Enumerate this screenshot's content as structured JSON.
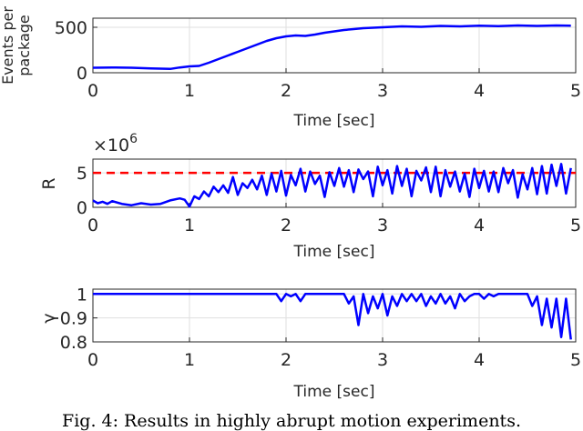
{
  "caption": "Fig. 4: Results in highly abrupt motion experiments.",
  "colors": {
    "series": "#0000ff",
    "threshold": "#ff0000",
    "axis": "#262626",
    "grid": "#dfdfdf"
  },
  "chart_data": [
    {
      "type": "line",
      "xlabel": "Time [sec]",
      "ylabel": "Events per package",
      "xlim": [
        0,
        5
      ],
      "ylim": [
        0,
        600
      ],
      "xticks": [
        "0",
        "1",
        "2",
        "3",
        "4",
        "5"
      ],
      "yticks": [
        "0",
        "500"
      ],
      "grid": true,
      "series": [
        {
          "x": [
            0,
            0.2,
            0.4,
            0.6,
            0.8,
            0.9,
            1.0,
            1.1,
            1.2,
            1.3,
            1.4,
            1.5,
            1.6,
            1.7,
            1.8,
            1.9,
            2.0,
            2.1,
            2.2,
            2.3,
            2.4,
            2.5,
            2.6,
            2.7,
            2.8,
            2.9,
            3.0,
            3.2,
            3.4,
            3.6,
            3.8,
            4.0,
            4.2,
            4.4,
            4.6,
            4.8,
            4.95
          ],
          "y": [
            55,
            58,
            55,
            48,
            42,
            58,
            70,
            75,
            110,
            150,
            190,
            230,
            270,
            310,
            350,
            380,
            400,
            410,
            405,
            420,
            440,
            455,
            470,
            480,
            490,
            495,
            500,
            510,
            505,
            515,
            510,
            518,
            512,
            520,
            515,
            520,
            518
          ]
        }
      ]
    },
    {
      "type": "line",
      "xlabel": "Time [sec]",
      "ylabel": "R",
      "exponent": "×10",
      "exponent_power": "6",
      "xlim": [
        0,
        5
      ],
      "ylim": [
        0,
        7
      ],
      "xticks": [
        "0",
        "1",
        "2",
        "3",
        "4",
        "5"
      ],
      "yticks": [
        "0",
        "5"
      ],
      "grid": true,
      "threshold": 5,
      "series": [
        {
          "x": [
            0,
            0.05,
            0.1,
            0.15,
            0.2,
            0.3,
            0.4,
            0.5,
            0.6,
            0.7,
            0.8,
            0.9,
            0.95,
            1.0,
            1.05,
            1.1,
            1.15,
            1.2,
            1.25,
            1.3,
            1.35,
            1.4,
            1.45,
            1.5,
            1.55,
            1.6,
            1.65,
            1.7,
            1.75,
            1.8,
            1.85,
            1.9,
            1.95,
            2.0,
            2.05,
            2.1,
            2.15,
            2.2,
            2.25,
            2.3,
            2.35,
            2.4,
            2.45,
            2.5,
            2.55,
            2.6,
            2.65,
            2.7,
            2.75,
            2.8,
            2.85,
            2.9,
            2.95,
            3.0,
            3.05,
            3.1,
            3.15,
            3.2,
            3.25,
            3.3,
            3.35,
            3.4,
            3.45,
            3.5,
            3.55,
            3.6,
            3.65,
            3.7,
            3.75,
            3.8,
            3.85,
            3.9,
            3.95,
            4.0,
            4.05,
            4.1,
            4.15,
            4.2,
            4.25,
            4.3,
            4.35,
            4.4,
            4.45,
            4.5,
            4.55,
            4.6,
            4.65,
            4.7,
            4.75,
            4.8,
            4.85,
            4.9,
            4.95
          ],
          "y": [
            1.0,
            0.6,
            0.8,
            0.5,
            0.9,
            0.5,
            0.3,
            0.6,
            0.4,
            0.5,
            1.0,
            1.3,
            1.1,
            0.1,
            1.6,
            1.2,
            2.3,
            1.6,
            3.0,
            2.2,
            3.2,
            2.1,
            4.4,
            1.8,
            3.5,
            2.8,
            4.0,
            2.6,
            4.6,
            1.8,
            4.9,
            2.3,
            5.3,
            1.7,
            4.7,
            3.2,
            5.6,
            2.3,
            5.2,
            3.4,
            4.6,
            1.5,
            5.1,
            3.1,
            5.7,
            3.0,
            5.4,
            2.2,
            5.5,
            4.1,
            5.2,
            1.6,
            5.9,
            3.2,
            5.4,
            2.0,
            6.0,
            3.1,
            5.6,
            1.6,
            5.3,
            3.9,
            5.8,
            2.2,
            5.9,
            1.6,
            5.4,
            3.0,
            5.2,
            2.3,
            4.9,
            1.5,
            5.6,
            2.8,
            5.3,
            2.3,
            5.2,
            2.2,
            5.7,
            3.5,
            5.4,
            1.4,
            4.8,
            2.6,
            5.7,
            1.9,
            6.0,
            2.0,
            6.2,
            3.1,
            6.3,
            2.0,
            5.7
          ]
        }
      ]
    },
    {
      "type": "line",
      "xlabel": "Time [sec]",
      "ylabel": "γ",
      "xlim": [
        0,
        5
      ],
      "ylim": [
        0.8,
        1.02
      ],
      "xticks": [
        "0",
        "1",
        "2",
        "3",
        "4",
        "5"
      ],
      "yticks": [
        "0.8",
        "0.9",
        "1"
      ],
      "grid": true,
      "series": [
        {
          "x": [
            0,
            1.9,
            1.95,
            2.0,
            2.05,
            2.1,
            2.15,
            2.2,
            2.6,
            2.65,
            2.7,
            2.75,
            2.8,
            2.85,
            2.9,
            2.95,
            3.0,
            3.05,
            3.1,
            3.15,
            3.2,
            3.25,
            3.3,
            3.35,
            3.4,
            3.45,
            3.5,
            3.55,
            3.6,
            3.65,
            3.7,
            3.75,
            3.8,
            3.85,
            3.9,
            3.95,
            4.0,
            4.05,
            4.1,
            4.15,
            4.2,
            4.25,
            4.3,
            4.35,
            4.4,
            4.45,
            4.5,
            4.55,
            4.6,
            4.65,
            4.7,
            4.75,
            4.8,
            4.85,
            4.9,
            4.95
          ],
          "y": [
            1.0,
            1.0,
            0.97,
            1.0,
            0.99,
            1.0,
            0.97,
            1.0,
            1.0,
            0.96,
            0.99,
            0.87,
            1.0,
            0.92,
            0.99,
            0.94,
            1.0,
            0.91,
            0.99,
            0.95,
            1.0,
            0.97,
            1.0,
            0.97,
            1.0,
            0.95,
            0.99,
            0.96,
            1.0,
            0.96,
            0.99,
            0.94,
            1.0,
            0.97,
            0.99,
            1.0,
            1.0,
            0.98,
            1.0,
            0.99,
            1.0,
            1.0,
            1.0,
            1.0,
            1.0,
            1.0,
            1.0,
            0.95,
            0.99,
            0.87,
            0.98,
            0.86,
            0.98,
            0.82,
            0.98,
            0.81
          ]
        }
      ]
    }
  ]
}
